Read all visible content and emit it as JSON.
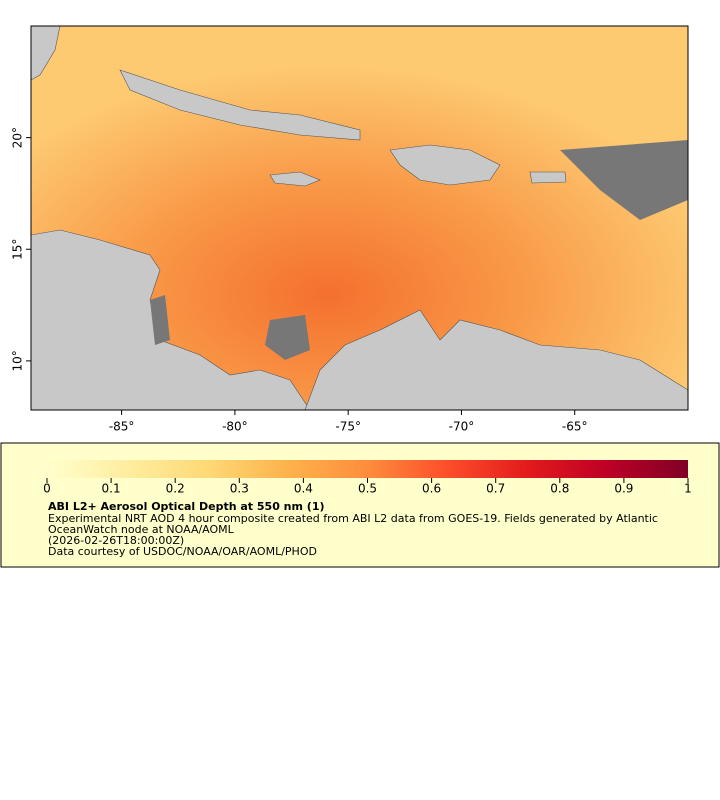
{
  "map": {
    "xlim": [
      -89,
      -60
    ],
    "ylim": [
      7.8,
      25
    ],
    "xticks": [
      {
        "value": -85,
        "label": "-85°"
      },
      {
        "value": -80,
        "label": "-80°"
      },
      {
        "value": -75,
        "label": "-75°"
      },
      {
        "value": -70,
        "label": "-70°"
      },
      {
        "value": -65,
        "label": "-65°"
      }
    ],
    "yticks": [
      {
        "value": 10,
        "label": "10°"
      },
      {
        "value": 15,
        "label": "15°"
      },
      {
        "value": 20,
        "label": "20°"
      }
    ],
    "colorbar": {
      "lim": [
        0,
        1
      ],
      "ticks": [
        0,
        0.1,
        0.2,
        0.3,
        0.4,
        0.5,
        0.6,
        0.7,
        0.8,
        0.9,
        1
      ],
      "colors": [
        "#ffffcc",
        "#ffeda0",
        "#fed976",
        "#feb24c",
        "#fd8d3c",
        "#fc4e2a",
        "#e31a1c",
        "#bd0026",
        "#800026"
      ]
    },
    "legend": {
      "title": "ABI L2+ Aerosol Optical Depth at 550 nm (1)",
      "lines": [
        "Experimental NRT AOD 4 hour composite created from ABI L2 data from GOES-19. Fields generated by Atlantic",
        "OceanWatch node at NOAA/AOML",
        "(2026-02-26T18:00:00Z)",
        "Data courtesy of USDOC/NOAA/OAR/AOML/PHOD"
      ]
    }
  }
}
